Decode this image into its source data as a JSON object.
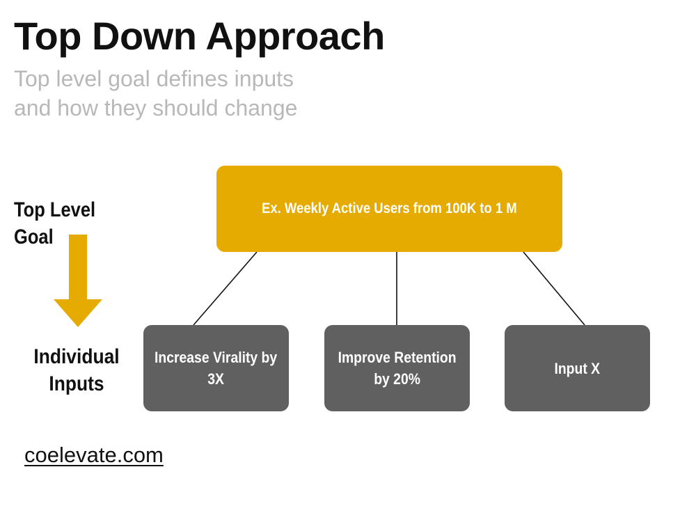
{
  "title": "Top Down Approach",
  "subtitle_lines": [
    "Top level goal defines inputs",
    "and how they should change"
  ],
  "side_labels": {
    "top_level_goal": "Top Level Goal",
    "individual_inputs_lines": [
      "Individual",
      "Inputs"
    ]
  },
  "goal": {
    "text": "Ex. Weekly Active Users from 100K to 1 M"
  },
  "inputs": [
    {
      "lines": [
        "Increase Virality by",
        "3X"
      ]
    },
    {
      "lines": [
        "Improve Retention",
        "by 20%"
      ]
    },
    {
      "lines": [
        "Input X"
      ]
    }
  ],
  "footer": {
    "link_text": "coelevate.com"
  },
  "colors": {
    "goal_fill": "#e5ab00",
    "input_fill": "#606060",
    "arrow_fill": "#e5ab00",
    "subtitle": "#b8b8b8"
  },
  "icons": {
    "arrow": "arrow-down-icon"
  }
}
